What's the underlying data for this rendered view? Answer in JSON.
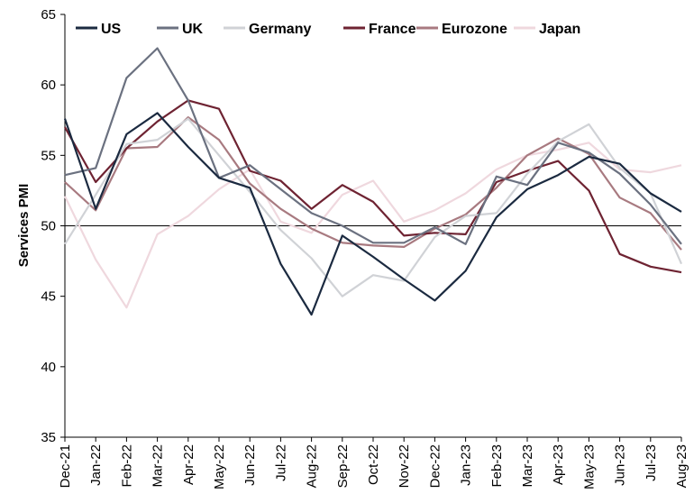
{
  "chart_data": {
    "type": "line",
    "title": "",
    "xlabel": "",
    "ylabel": "Services PMI",
    "ylim": [
      35,
      65
    ],
    "yticks": [
      35,
      40,
      45,
      50,
      55,
      60,
      65
    ],
    "reference_line": 50,
    "grid": false,
    "legend_position": "top",
    "categories": [
      "Dec-21",
      "Jan-22",
      "Feb-22",
      "Mar-22",
      "Apr-22",
      "May-22",
      "Jun-22",
      "Jul-22",
      "Aug-22",
      "Sep-22",
      "Oct-22",
      "Nov-22",
      "Dec-22",
      "Jan-23",
      "Feb-23",
      "Mar-23",
      "Apr-23",
      "May-23",
      "Jun-23",
      "Jul-23",
      "Aug-23"
    ],
    "series": [
      {
        "name": "US",
        "color": "#1b2a40",
        "values": [
          57.6,
          51.2,
          56.5,
          58.0,
          55.6,
          53.4,
          52.7,
          47.3,
          43.7,
          49.3,
          47.8,
          46.2,
          44.7,
          46.8,
          50.6,
          52.6,
          53.6,
          54.9,
          54.4,
          52.3,
          51.0
        ]
      },
      {
        "name": "UK",
        "color": "#6b7180",
        "values": [
          53.6,
          54.1,
          60.5,
          62.6,
          58.9,
          53.4,
          54.3,
          52.6,
          50.9,
          50.0,
          48.8,
          48.8,
          49.9,
          48.7,
          53.5,
          52.9,
          55.9,
          55.2,
          53.7,
          51.5,
          48.7
        ]
      },
      {
        "name": "Germany",
        "color": "#d0d2d6",
        "values": [
          48.7,
          52.2,
          55.8,
          56.1,
          57.6,
          55.0,
          52.4,
          49.7,
          47.7,
          45.0,
          46.5,
          46.1,
          49.2,
          50.7,
          50.9,
          53.7,
          56.0,
          57.2,
          54.1,
          52.3,
          47.3
        ]
      },
      {
        "name": "France",
        "color": "#6e2332",
        "values": [
          57.0,
          53.1,
          55.5,
          57.4,
          58.9,
          58.3,
          53.9,
          53.2,
          51.2,
          52.9,
          51.7,
          49.3,
          49.5,
          49.4,
          53.1,
          53.9,
          54.6,
          52.5,
          48.0,
          47.1,
          46.7
        ]
      },
      {
        "name": "Eurozone",
        "color": "#a87a80",
        "values": [
          53.1,
          51.1,
          55.5,
          55.6,
          57.7,
          56.1,
          53.0,
          51.2,
          49.8,
          48.8,
          48.6,
          48.5,
          49.8,
          50.8,
          52.7,
          55.0,
          56.2,
          55.1,
          52.0,
          50.9,
          48.3
        ]
      },
      {
        "name": "Japan",
        "color": "#efd8de",
        "values": [
          52.1,
          47.6,
          44.2,
          49.4,
          50.7,
          52.6,
          54.0,
          50.3,
          49.5,
          52.2,
          53.2,
          50.3,
          51.1,
          52.3,
          54.0,
          55.0,
          55.4,
          55.9,
          54.0,
          53.8,
          54.3
        ]
      }
    ]
  }
}
